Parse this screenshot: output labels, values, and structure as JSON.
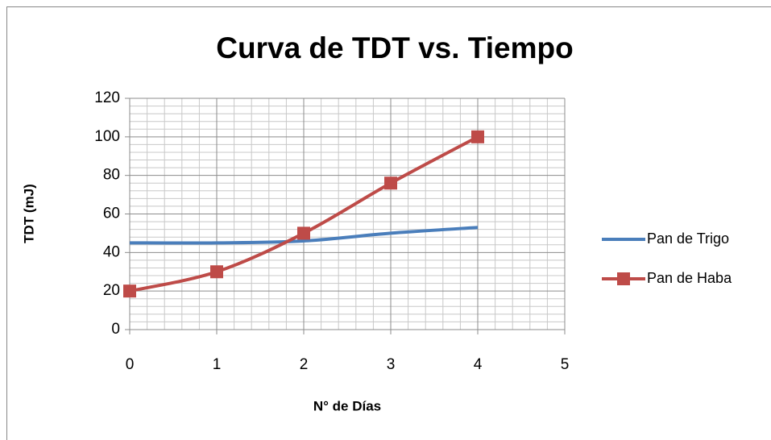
{
  "chart_data": {
    "type": "line",
    "title": "Curva de TDT vs. Tiempo",
    "xlabel": "N° de Días",
    "ylabel": "TDT (mJ)",
    "x": [
      0,
      1,
      2,
      3,
      4
    ],
    "series": [
      {
        "name": "Pan de Trigo",
        "color": "#4a7ebb",
        "marker": "none",
        "values": [
          45,
          45,
          46,
          50,
          53
        ]
      },
      {
        "name": "Pan de Haba",
        "color": "#be4b48",
        "marker": "square",
        "values": [
          20,
          30,
          50,
          76,
          100
        ]
      }
    ],
    "xlim": [
      0,
      5
    ],
    "xticks": [
      0,
      1,
      2,
      3,
      4,
      5
    ],
    "ylim": [
      0,
      120
    ],
    "yticks": [
      0,
      20,
      40,
      60,
      80,
      100,
      120
    ],
    "grid": true,
    "minor_divisions": 5,
    "smooth": true,
    "legend": "right"
  }
}
